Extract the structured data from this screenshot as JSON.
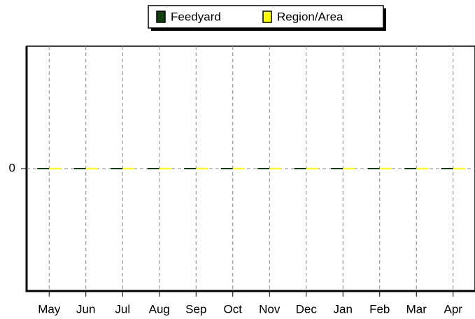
{
  "chart_data": {
    "type": "bar",
    "categories": [
      "May",
      "Jun",
      "Jul",
      "Aug",
      "Sep",
      "Oct",
      "Nov",
      "Dec",
      "Jan",
      "Feb",
      "Mar",
      "Apr"
    ],
    "series": [
      {
        "name": "Feedyard",
        "color": "#0f3f0f",
        "values": [
          0,
          0,
          0,
          0,
          0,
          0,
          0,
          0,
          0,
          0,
          0,
          0
        ]
      },
      {
        "name": "Region/Area",
        "color": "#ffff00",
        "values": [
          0,
          0,
          0,
          0,
          0,
          0,
          0,
          0,
          0,
          0,
          0,
          0
        ]
      }
    ],
    "ylim": [
      -1,
      1
    ],
    "yticks": [
      0
    ],
    "grid": true,
    "legend": "top"
  }
}
